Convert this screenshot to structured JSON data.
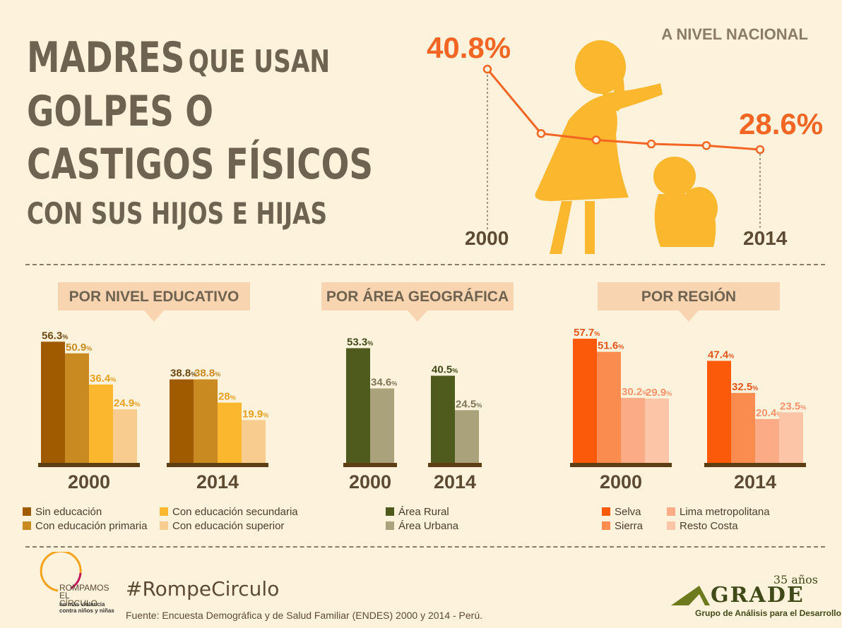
{
  "title": {
    "line1_big": "MADRES",
    "line1_small": "QUE USAN",
    "line2": "GOLPES O",
    "line3": "CASTIGOS FÍSICOS",
    "line4": "CON SUS HIJOS E HIJAS"
  },
  "national": {
    "label": "A NIVEL NACIONAL",
    "start_value": "40.8%",
    "end_value": "28.6%",
    "start_year": "2000",
    "end_year": "2014"
  },
  "sections": {
    "educativo": "POR NIVEL EDUCATIVO",
    "area": "POR ÁREA GEOGRÁFICA",
    "region": "POR REGIÓN"
  },
  "legends": {
    "educativo": [
      "Sin educación",
      "Con educación secundaria",
      "Con educación primaria",
      "Con educación superior"
    ],
    "area": [
      "Área Rural",
      "Área Urbana"
    ],
    "region": [
      "Selva",
      "Lima metropolitana",
      "Sierra",
      "Resto Costa"
    ]
  },
  "footer": {
    "hashtag": "#RompeCirculo",
    "source": "Fuente: Encuesta Demográfica y de Salud Familiar (ENDES) 2000 y 2014 - Perú.",
    "logo_left_text": "ROMPAMOS EL CÍRCULO",
    "logo_left_sub": "no más violencia contra niños y niñas",
    "grade_years": "35 años",
    "grade_name": "GRADE",
    "grade_sub": "Grupo de Análisis para el Desarrollo"
  },
  "colors": {
    "edu": [
      "#a05a00",
      "#c98a22",
      "#fbb72e",
      "#f8cc8e"
    ],
    "area": [
      "#4e5b1c",
      "#a9a27a"
    ],
    "region": [
      "#fa5a0a",
      "#fb8c4f",
      "#fcab87",
      "#fdc5a7"
    ],
    "accent": "#f26522",
    "figure": "#fbb72e"
  },
  "chart_data": [
    {
      "type": "line",
      "title": "A NIVEL NACIONAL",
      "x": [
        "2000",
        "",
        "",
        "",
        "",
        "2014"
      ],
      "series": [
        {
          "values": [
            40.8,
            null,
            null,
            null,
            null,
            28.6
          ]
        }
      ]
    },
    {
      "type": "bar",
      "title": "POR NIVEL EDUCATIVO",
      "categories": [
        "2000",
        "2014"
      ],
      "series": [
        {
          "name": "Sin educación",
          "values": [
            56.3,
            38.8
          ]
        },
        {
          "name": "Con educación primaria",
          "values": [
            50.9,
            38.8
          ]
        },
        {
          "name": "Con educación secundaria",
          "values": [
            36.4,
            28
          ]
        },
        {
          "name": "Con educación superior",
          "values": [
            24.9,
            19.9
          ]
        }
      ]
    },
    {
      "type": "bar",
      "title": "POR ÁREA GEOGRÁFICA",
      "categories": [
        "2000",
        "2014"
      ],
      "series": [
        {
          "name": "Área Rural",
          "values": [
            53.3,
            40.5
          ]
        },
        {
          "name": "Área Urbana",
          "values": [
            34.6,
            24.5
          ]
        }
      ]
    },
    {
      "type": "bar",
      "title": "POR REGIÓN",
      "categories": [
        "2000",
        "2014"
      ],
      "series": [
        {
          "name": "Selva",
          "values": [
            57.7,
            47.4
          ]
        },
        {
          "name": "Sierra",
          "values": [
            51.6,
            32.5
          ]
        },
        {
          "name": "Lima metropolitana",
          "values": [
            30.2,
            20.4
          ]
        },
        {
          "name": "Resto Costa",
          "values": [
            29.9,
            23.5
          ]
        }
      ]
    }
  ]
}
